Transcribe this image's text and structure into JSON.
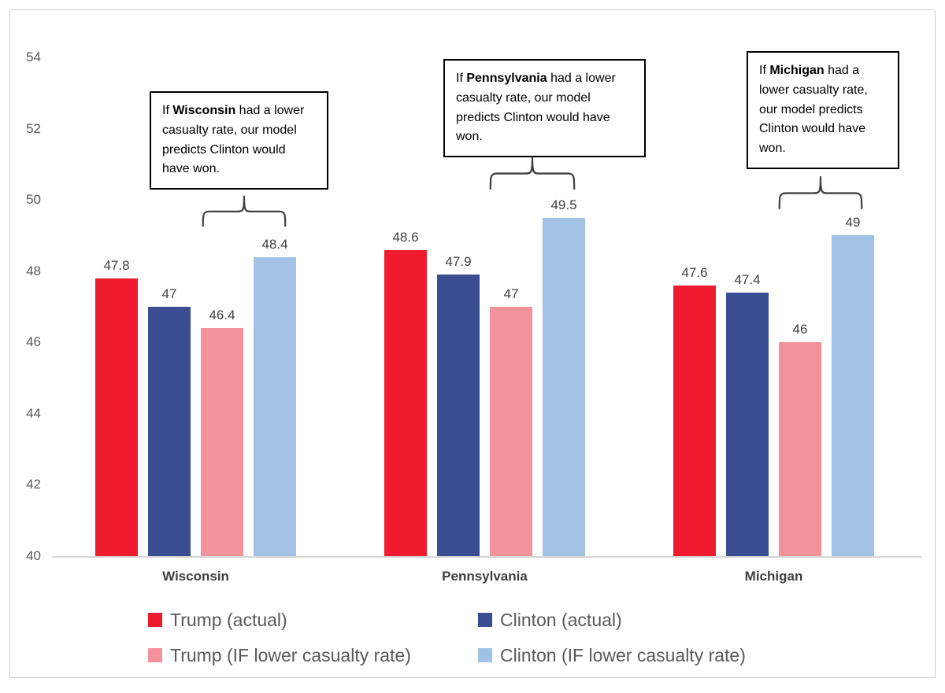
{
  "chart_data": {
    "type": "bar",
    "categories": [
      "Wisconsin",
      "Pennsylvania",
      "Michigan"
    ],
    "series": [
      {
        "name": "Trump (actual)",
        "color": "#ED1B2D",
        "values": [
          47.8,
          48.6,
          47.6
        ]
      },
      {
        "name": "Clinton (actual)",
        "color": "#3B4E94",
        "values": [
          47,
          47.9,
          47.4
        ]
      },
      {
        "name": "Trump (IF lower casualty rate)",
        "color": "#F4929B",
        "values": [
          46.4,
          47,
          46
        ]
      },
      {
        "name": "Clinton (IF lower casualty rate)",
        "color": "#A2C2E5",
        "values": [
          48.4,
          49.5,
          49
        ]
      }
    ],
    "title": "",
    "xlabel": "",
    "ylabel": "",
    "ylim": [
      40,
      54
    ],
    "yticks": [
      40,
      42,
      44,
      46,
      48,
      50,
      52,
      54
    ],
    "grid": false,
    "legend_position": "bottom",
    "data_labels": true,
    "colors": {
      "axis_line": "#d6d6d6",
      "tick_text": "#595959",
      "label_text": "#404040",
      "legend_text": "#595959",
      "annotation_border": "#000000",
      "brace_stroke": "#404040"
    }
  },
  "annotations": [
    {
      "prefix": "If ",
      "state": "Wisconsin",
      "suffix": " had a lower casualty rate, our model predicts Clinton would have won."
    },
    {
      "prefix": "If ",
      "state": "Pennsylvania",
      "suffix": " had a lower casualty rate, our model predicts Clinton would have won."
    },
    {
      "prefix": "If ",
      "state": "Michigan",
      "suffix": " had a lower casualty rate, our model predicts Clinton would have won."
    }
  ]
}
